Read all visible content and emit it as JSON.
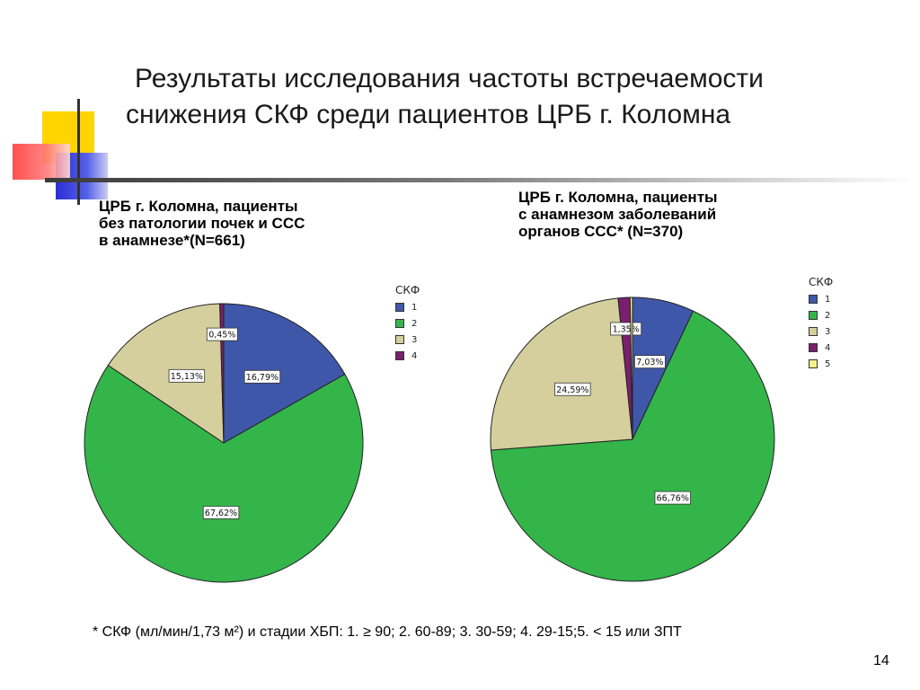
{
  "title": {
    "line1": "Результаты исследования частоты встречаемости",
    "line2": "снижения СКФ среди пациентов ЦРБ г. Коломна"
  },
  "colors": {
    "1": "#3f57a8",
    "2": "#33b54a",
    "3": "#d4cf9c",
    "4": "#7a1f6e",
    "5": "#f5f08a"
  },
  "chart_data": [
    {
      "type": "pie",
      "title_lines": [
        "ЦРБ г. Коломна, пациенты",
        "без патологии почек и ССС",
        "в анамнезе*(N=661)"
      ],
      "legend_title": "СКФ",
      "categories": [
        "1",
        "2",
        "3",
        "4"
      ],
      "values": [
        16.79,
        67.62,
        15.13,
        0.45
      ],
      "labels": [
        "16,79%",
        "67,62%",
        "15,13%",
        "0,45%"
      ]
    },
    {
      "type": "pie",
      "title_lines": [
        "ЦРБ г. Коломна, пациенты",
        "с анамнезом заболеваний",
        "органов ССС* (N=370)"
      ],
      "legend_title": "СКФ",
      "categories": [
        "1",
        "2",
        "3",
        "4",
        "5"
      ],
      "values": [
        7.03,
        66.76,
        24.59,
        1.35,
        0.27
      ],
      "labels": [
        "7,03%",
        "66,76%",
        "24,59%",
        "1,35%",
        ""
      ]
    }
  ],
  "footnote": "* СКФ (мл/мин/1,73 м²) и стадии ХБП:  1. ≥ 90; 2. 60-89; 3. 30-59; 4. 29-15;5. < 15 или ЗПТ",
  "page_number": "14"
}
